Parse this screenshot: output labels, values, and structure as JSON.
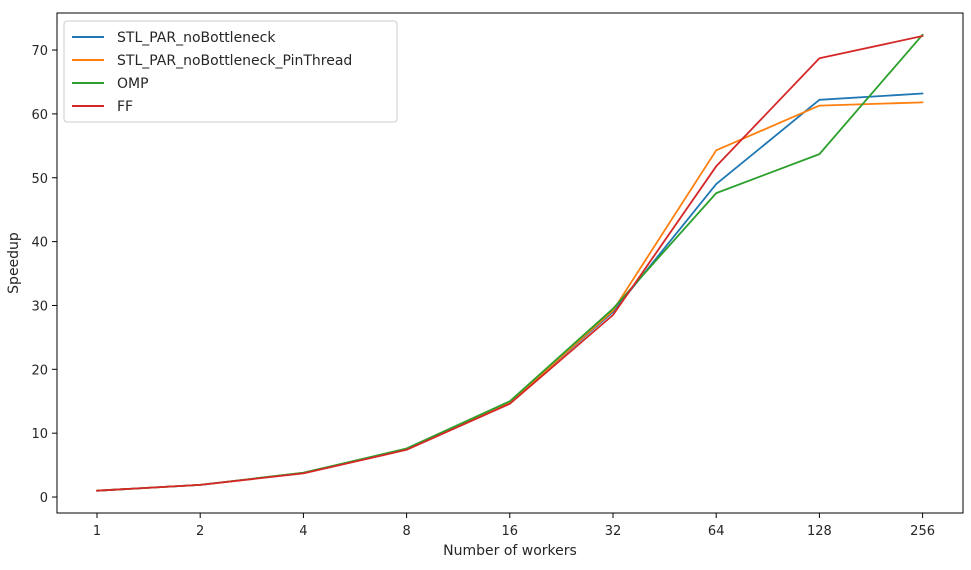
{
  "chart_data": {
    "type": "line",
    "title": "",
    "xlabel": "Number of workers",
    "ylabel": "Speedup",
    "x": [
      "1",
      "2",
      "4",
      "8",
      "16",
      "32",
      "64",
      "128",
      "256"
    ],
    "ylim": [
      -2.5,
      75.8
    ],
    "yticks": [
      0,
      10,
      20,
      30,
      40,
      50,
      60,
      70
    ],
    "grid": false,
    "legend_position": "upper left",
    "series": [
      {
        "name": "STL_PAR_noBottleneck",
        "color": "#1f77b4",
        "values": [
          1.0,
          1.9,
          3.8,
          7.5,
          14.9,
          29.0,
          49.0,
          62.2,
          63.2
        ]
      },
      {
        "name": "STL_PAR_noBottleneck_PinThread",
        "color": "#ff7f0e",
        "values": [
          1.0,
          1.9,
          3.8,
          7.5,
          14.8,
          29.2,
          54.3,
          61.3,
          61.8
        ]
      },
      {
        "name": "OMP",
        "color": "#2ca02c",
        "values": [
          1.0,
          1.9,
          3.8,
          7.6,
          15.0,
          29.5,
          47.6,
          53.7,
          72.4
        ]
      },
      {
        "name": "FF",
        "color": "#d62728",
        "values": [
          1.0,
          1.9,
          3.7,
          7.4,
          14.6,
          28.5,
          51.8,
          68.7,
          72.2
        ]
      }
    ]
  }
}
